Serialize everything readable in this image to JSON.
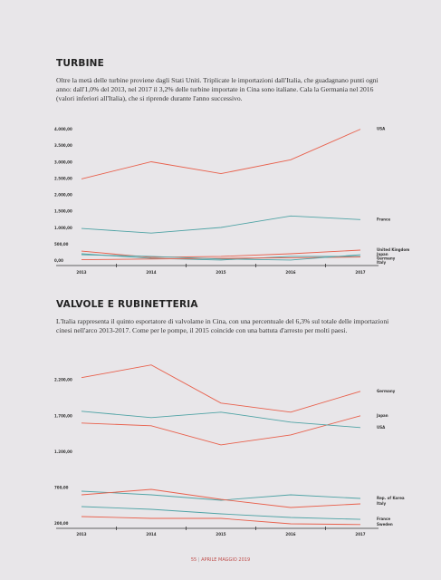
{
  "chart_data": [
    {
      "type": "line",
      "title": "TURBINE",
      "subtitle": "Oltre la metà delle turbine proviene dagli Stati Uniti. Triplicate le importazioni dall'Italia, che guadagnano punti ogni anno: dall'1,0% del 2013, nel 2017 il 3,2% delle turbine importate in Cina sono italiane. Cala la Germania nel 2016 (valori inferiori all'Italia), che si riprende durante l'anno successivo.",
      "categories": [
        "2013",
        "2014",
        "2015",
        "2016",
        "2017"
      ],
      "ylim": [
        0,
        4000
      ],
      "yticks": [
        {
          "value": 0,
          "label": "0,00"
        },
        {
          "value": 500,
          "label": "500,00"
        },
        {
          "value": 1000,
          "label": "1.000,00"
        },
        {
          "value": 1500,
          "label": "1.500,00"
        },
        {
          "value": 2000,
          "label": "2.000,00"
        },
        {
          "value": 2500,
          "label": "2.500,00"
        },
        {
          "value": 3000,
          "label": "3.000,00"
        },
        {
          "value": 3500,
          "label": "3.500,00"
        },
        {
          "value": 4000,
          "label": "4.000,00"
        }
      ],
      "series": [
        {
          "name": "USA",
          "color": "#e8604c",
          "values": [
            2500,
            3020,
            2660,
            3080,
            4010
          ]
        },
        {
          "name": "France",
          "color": "#4fa3a5",
          "values": [
            990,
            850,
            1020,
            1370,
            1260
          ]
        },
        {
          "name": "United Kingdom",
          "color": "#e8604c",
          "values": [
            300,
            110,
            140,
            220,
            330
          ]
        },
        {
          "name": "Germany",
          "color": "#4fa3a5",
          "values": [
            220,
            80,
            30,
            140,
            140
          ]
        },
        {
          "name": "Italy",
          "color": "#e8604c",
          "values": [
            40,
            60,
            80,
            100,
            120
          ]
        },
        {
          "name": "Japan",
          "color": "#4fa3a5",
          "values": [
            190,
            140,
            60,
            30,
            190
          ]
        }
      ]
    },
    {
      "type": "line",
      "title": "VALVOLE E RUBINETTERIA",
      "subtitle": "L'Italia rappresenta il quinto esportatore di valvolame in Cina, con una percentuale del 6,3% sul totale delle importazioni cinesi nell'arco 2013-2017. Come per le pompe, il 2015 coincide con una battuta d'arresto per molti paesi.",
      "categories": [
        "2013",
        "2014",
        "2015",
        "2016",
        "2017"
      ],
      "ylim": [
        150,
        2500
      ],
      "yticks": [
        {
          "value": 200,
          "label": "200,00"
        },
        {
          "value": 700,
          "label": "700,00"
        },
        {
          "value": 1200,
          "label": "1.200,00"
        },
        {
          "value": 1700,
          "label": "1.700,00"
        },
        {
          "value": 2200,
          "label": "2.200,00"
        }
      ],
      "series": [
        {
          "name": "Germany",
          "color": "#e8604c",
          "values": [
            2238,
            2415,
            1883,
            1757,
            2048
          ]
        },
        {
          "name": "Japan",
          "color": "#e8604c",
          "values": [
            1605,
            1567,
            1301,
            1440,
            1706
          ]
        },
        {
          "name": "USA",
          "color": "#4fa3a5",
          "values": [
            1770,
            1681,
            1757,
            1618,
            1542
          ]
        },
        {
          "name": "Rep. of Korea",
          "color": "#4fa3a5",
          "values": [
            656,
            605,
            529,
            605,
            554
          ]
        },
        {
          "name": "Italy",
          "color": "#e8604c",
          "values": [
            605,
            681,
            542,
            428,
            478
          ]
        },
        {
          "name": "France",
          "color": "#4fa3a5",
          "values": [
            441,
            403,
            339,
            289,
            263
          ]
        },
        {
          "name": "Sweden",
          "color": "#e8604c",
          "values": [
            301,
            276,
            276,
            200,
            190
          ]
        }
      ]
    }
  ],
  "footer": {
    "page": "55",
    "issue": "APRILE MAGGIO 2019"
  }
}
